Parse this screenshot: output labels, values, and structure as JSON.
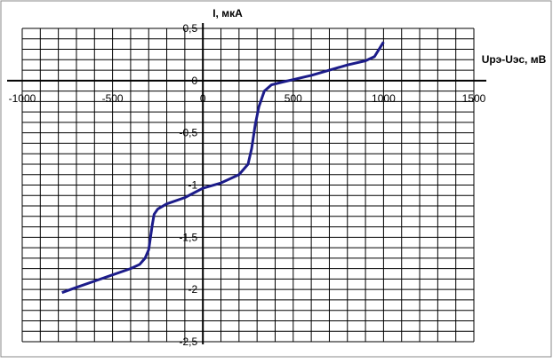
{
  "chart_data": {
    "type": "line",
    "x_label": "Uрэ-Uэс, мВ",
    "y_label": "I, мкА",
    "x": [
      -780,
      -700,
      -600,
      -500,
      -400,
      -350,
      -320,
      -300,
      -290,
      -280,
      -270,
      -250,
      -200,
      -100,
      0,
      100,
      200,
      250,
      270,
      290,
      310,
      340,
      380,
      450,
      500,
      600,
      700,
      800,
      900,
      950,
      1000
    ],
    "series": [
      {
        "color": "#1c1c8a",
        "values": [
          -2.03,
          -1.98,
          -1.92,
          -1.86,
          -1.8,
          -1.76,
          -1.7,
          -1.62,
          -1.5,
          -1.38,
          -1.28,
          -1.23,
          -1.18,
          -1.12,
          -1.03,
          -0.98,
          -0.9,
          -0.8,
          -0.65,
          -0.42,
          -0.25,
          -0.1,
          -0.04,
          -0.01,
          0.01,
          0.05,
          0.1,
          0.15,
          0.19,
          0.23,
          0.37
        ]
      }
    ],
    "xlim": [
      -1000,
      1500
    ],
    "xticks": [
      -1000,
      -500,
      0,
      500,
      1000,
      1500
    ],
    "ylim": [
      -2.5,
      0.5
    ],
    "yticks": [
      {
        "value": 0.5,
        "label": "0,5"
      },
      0,
      {
        "value": -0.5,
        "label": "-0,5"
      },
      -1,
      {
        "value": -1.5,
        "label": "-1,5"
      },
      -2,
      {
        "value": -2.5,
        "label": "-2,5"
      }
    ],
    "grid": true
  }
}
